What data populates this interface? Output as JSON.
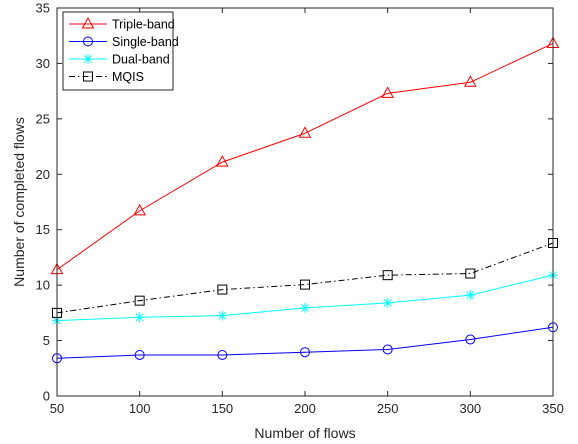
{
  "chart_data": {
    "type": "line",
    "title": "",
    "xlabel": "Number of flows",
    "ylabel": "Number of completed flows",
    "x": [
      50,
      100,
      150,
      200,
      250,
      300,
      350
    ],
    "xlim": [
      50,
      350
    ],
    "ylim": [
      0,
      35
    ],
    "xticks": [
      50,
      100,
      150,
      200,
      250,
      300,
      350
    ],
    "yticks": [
      0,
      5,
      10,
      15,
      20,
      25,
      30,
      35
    ],
    "grid": false,
    "legend_position": "top-left",
    "series": [
      {
        "name": "Triple-band",
        "color": "#ff0000",
        "marker": "triangle",
        "dash": "solid",
        "values": [
          11.4,
          16.7,
          21.1,
          23.7,
          27.3,
          28.3,
          31.8
        ]
      },
      {
        "name": "Single-band",
        "color": "#0000ff",
        "marker": "circle",
        "dash": "solid",
        "values": [
          3.4,
          3.7,
          3.7,
          3.95,
          4.2,
          5.1,
          6.2
        ]
      },
      {
        "name": "Dual-band",
        "color": "#00ffff",
        "marker": "asterisk",
        "dash": "solid",
        "values": [
          6.8,
          7.1,
          7.25,
          7.95,
          8.4,
          9.1,
          10.9
        ]
      },
      {
        "name": "MQIS",
        "color": "#000000",
        "marker": "square",
        "dash": "dashdot",
        "values": [
          7.5,
          8.6,
          9.6,
          10.05,
          10.9,
          11.05,
          13.8
        ]
      }
    ]
  }
}
